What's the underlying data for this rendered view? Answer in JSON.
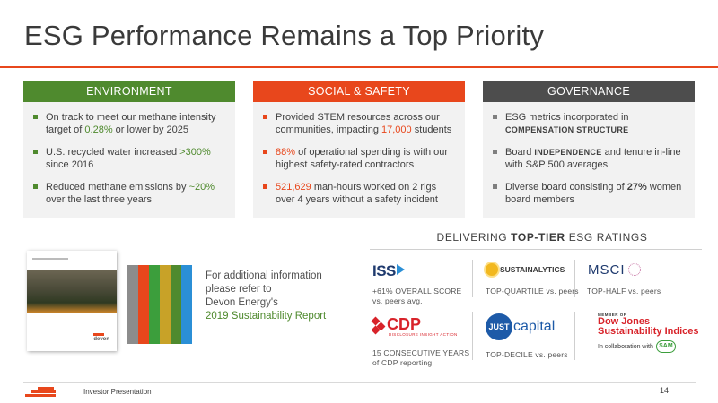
{
  "title": "ESG Performance Remains a Top Priority",
  "environment": {
    "header": "ENVIRONMENT",
    "items": [
      {
        "pre": "On track to meet our methane intensity target of ",
        "hl": "0.28%",
        "post": " or lower by 2025"
      },
      {
        "pre": "U.S. recycled water increased ",
        "hl": ">300%",
        "post": " since 2016"
      },
      {
        "pre": "Reduced methane emissions by ",
        "hl": "~20%",
        "post": " over the last three years"
      }
    ]
  },
  "social": {
    "header": "SOCIAL & SAFETY",
    "items": [
      {
        "pre": "Provided STEM resources across our communities, impacting ",
        "hl": "17,000",
        "post": " students"
      },
      {
        "pre": "",
        "hl": "88%",
        "post": " of operational spending is with our highest safety-rated contractors"
      },
      {
        "pre": "",
        "hl": "521,629",
        "post": " man-hours worked on 2 rigs over 4 years without a safety incident"
      }
    ]
  },
  "governance": {
    "header": "GOVERNANCE",
    "items": [
      {
        "pre": "ESG metrics incorporated in ",
        "hl": "COMPENSATION STRUCTURE",
        "post": ""
      },
      {
        "pre": "Board ",
        "hl": "INDEPENDENCE",
        "post": " and tenure in-line with S&P 500 averages"
      },
      {
        "pre": "Diverse board consisting of ",
        "hl": "27%",
        "post": " women board members"
      }
    ]
  },
  "report": {
    "line1": "For additional information",
    "line2": "please refer to",
    "line3": "Devon Energy's",
    "link": "2019 Sustainability Report",
    "cover_logo": "devon",
    "tab_colors": [
      "#8c8c8c",
      "#e8471c",
      "#3c9e3c",
      "#c8a228",
      "#4f8a2e",
      "#2b8fd6"
    ]
  },
  "ratings": {
    "title_pre": "DELIVERING ",
    "title_bold": "TOP-TIER",
    "title_post": " ESG RATINGS",
    "iss": {
      "logo": "ISS",
      "line1": "+61% OVERALL SCORE",
      "line2": "vs. peers avg."
    },
    "sustainalytics": {
      "logo": "SUSTAINALYTICS",
      "line1": "TOP-QUARTILE vs. peers"
    },
    "msci": {
      "logo": "MSCI",
      "line1": "TOP-HALF vs. peers"
    },
    "cdp": {
      "logo": "CDP",
      "sub": "DISCLOSURE INSIGHT ACTION",
      "line1": "15 CONSECUTIVE YEARS",
      "line2": "of CDP reporting"
    },
    "just": {
      "logo": "JUST",
      "cap": "capital",
      "line1": "TOP-DECILE vs. peers"
    },
    "djsi": {
      "member": "MEMBER OF",
      "line1": "Dow Jones",
      "line2": "Sustainability Indices",
      "collab": "In collaboration with",
      "sam": "SAM"
    }
  },
  "footer": {
    "text": "Investor Presentation",
    "page": "14"
  }
}
